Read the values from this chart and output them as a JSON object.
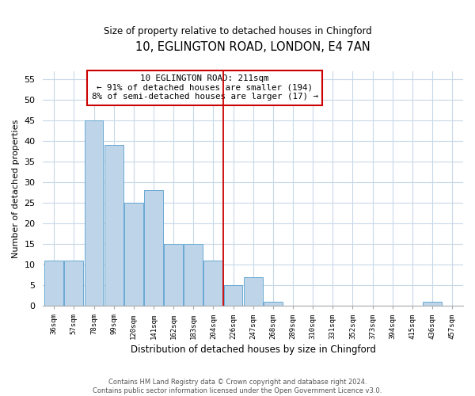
{
  "title": "10, EGLINGTON ROAD, LONDON, E4 7AN",
  "subtitle": "Size of property relative to detached houses in Chingford",
  "xlabel": "Distribution of detached houses by size in Chingford",
  "ylabel": "Number of detached properties",
  "bin_labels": [
    "36sqm",
    "57sqm",
    "78sqm",
    "99sqm",
    "120sqm",
    "141sqm",
    "162sqm",
    "183sqm",
    "204sqm",
    "226sqm",
    "247sqm",
    "268sqm",
    "289sqm",
    "310sqm",
    "331sqm",
    "352sqm",
    "373sqm",
    "394sqm",
    "415sqm",
    "436sqm",
    "457sqm"
  ],
  "bar_values": [
    11,
    11,
    45,
    39,
    25,
    28,
    15,
    15,
    11,
    5,
    7,
    1,
    0,
    0,
    0,
    0,
    0,
    0,
    0,
    1,
    0
  ],
  "bar_color": "#bed4e8",
  "bar_edge_color": "#6aaad4",
  "vline_color": "#cc0000",
  "ylim": [
    0,
    57
  ],
  "yticks": [
    0,
    5,
    10,
    15,
    20,
    25,
    30,
    35,
    40,
    45,
    50,
    55
  ],
  "annotation_title": "10 EGLINGTON ROAD: 211sqm",
  "annotation_line1": "← 91% of detached houses are smaller (194)",
  "annotation_line2": "8% of semi-detached houses are larger (17) →",
  "footer_line1": "Contains HM Land Registry data © Crown copyright and database right 2024.",
  "footer_line2": "Contains public sector information licensed under the Open Government Licence v3.0.",
  "background_color": "#ffffff",
  "grid_color": "#c8d8e8"
}
